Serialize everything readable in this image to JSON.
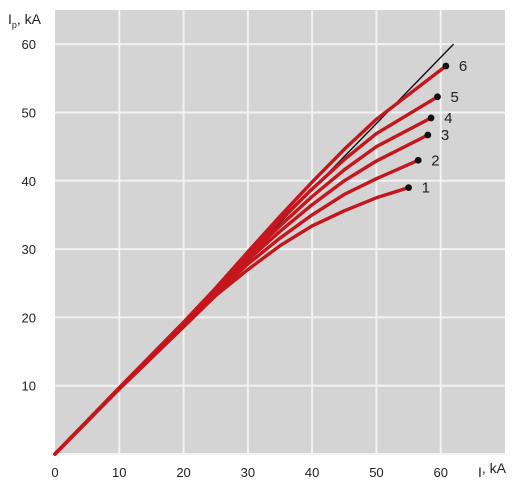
{
  "chart_data": {
    "type": "line",
    "xlabel": "I",
    "xlabel_subscript": "",
    "xlabel_unit": ", kA",
    "ylabel": "I",
    "ylabel_subscript": "p",
    "ylabel_unit": ", kA",
    "xlim": [
      0,
      70
    ],
    "ylim": [
      0,
      65
    ],
    "x_ticks": [
      0,
      10,
      20,
      30,
      40,
      50,
      60
    ],
    "y_ticks": [
      10,
      20,
      30,
      40,
      50,
      60
    ],
    "grid": true,
    "reference_line": {
      "x": [
        0,
        62
      ],
      "y": [
        0,
        60
      ]
    },
    "series": [
      {
        "name": "1",
        "x": [
          0,
          10,
          20,
          25,
          30,
          35,
          40,
          45,
          50,
          55
        ],
        "y": [
          0,
          9.5,
          18.6,
          23.2,
          27,
          30.5,
          33.4,
          35.6,
          37.5,
          39
        ]
      },
      {
        "name": "2",
        "x": [
          0,
          10,
          20,
          25,
          30,
          35,
          40,
          45,
          50,
          56.5
        ],
        "y": [
          0,
          9.6,
          18.8,
          23.5,
          27.8,
          31.6,
          35,
          38,
          40.3,
          43
        ]
      },
      {
        "name": "3",
        "x": [
          0,
          10,
          20,
          25,
          30,
          35,
          40,
          45,
          50,
          58
        ],
        "y": [
          0,
          9.6,
          19,
          23.8,
          28.4,
          32.6,
          36.5,
          40,
          42.9,
          46.7
        ]
      },
      {
        "name": "4",
        "x": [
          0,
          10,
          20,
          25,
          30,
          35,
          40,
          45,
          50,
          58.5
        ],
        "y": [
          0,
          9.6,
          19.1,
          24,
          28.9,
          33.4,
          37.7,
          41.6,
          45,
          49.2
        ]
      },
      {
        "name": "5",
        "x": [
          0,
          10,
          20,
          25,
          30,
          35,
          40,
          45,
          50,
          59.5
        ],
        "y": [
          0,
          9.7,
          19.2,
          24.2,
          29.3,
          34.2,
          38.8,
          43.1,
          46.9,
          52.3
        ]
      },
      {
        "name": "6",
        "x": [
          0,
          10,
          20,
          25,
          30,
          35,
          40,
          45,
          50,
          60.8
        ],
        "y": [
          0,
          9.7,
          19.3,
          24.3,
          29.6,
          34.8,
          39.8,
          44.6,
          49,
          56.8
        ]
      }
    ],
    "colors": {
      "background": "#d4d4d4",
      "grid": "#f2f2f2",
      "curve": "#c4161c",
      "reference": "#111111",
      "marker": "#111111"
    }
  }
}
